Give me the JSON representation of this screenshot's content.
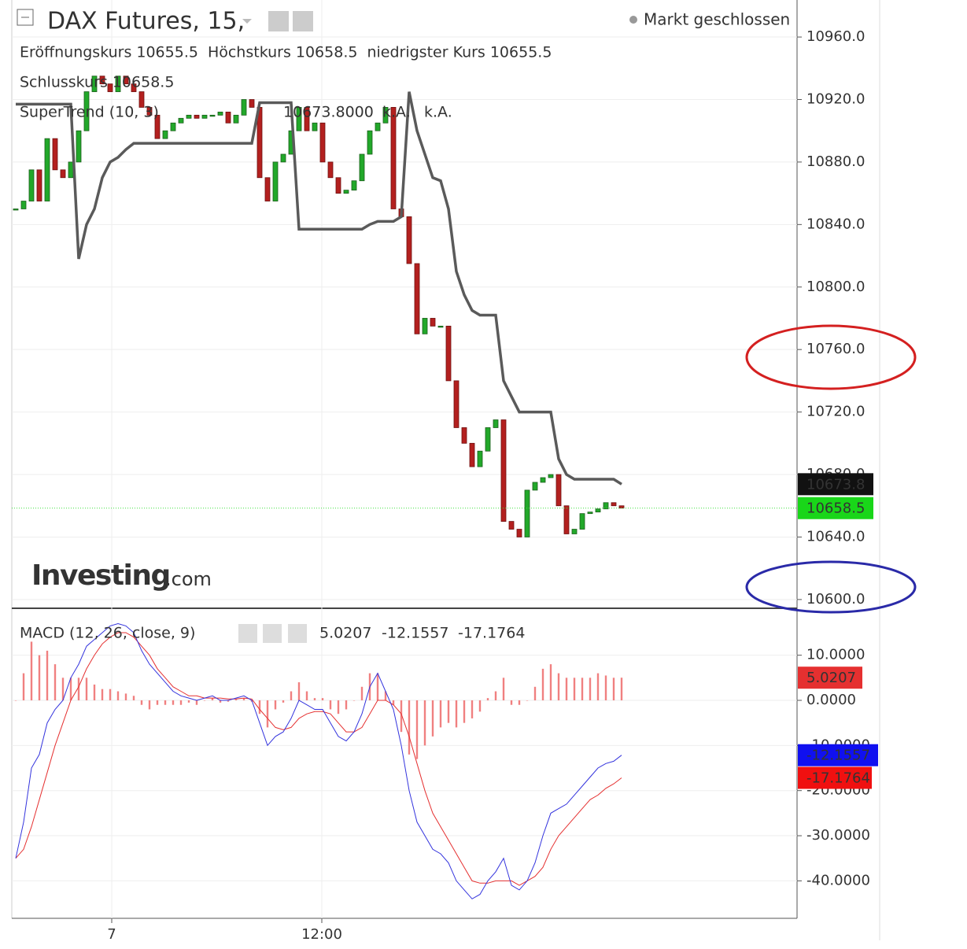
{
  "chart_data": [
    {
      "type": "candlestick",
      "title": "DAX Futures, 15,",
      "status": "Markt geschlossen",
      "ohlc_legend": [
        {
          "label": "Eröffnungskurs",
          "value": 10655.5
        },
        {
          "label": "Höchstkurs",
          "value": 10658.5
        },
        {
          "label": "niedrigster Kurs",
          "value": 10655.5
        },
        {
          "label": "Schlusskurs",
          "value": 10658.5
        }
      ],
      "watermark": [
        "Investing",
        ".com"
      ],
      "color_up": "#22a82a",
      "color_down": "#b3201f",
      "values": [
        10850,
        10855,
        10875,
        10855,
        10895,
        10875,
        10870,
        10880,
        10900,
        10925,
        10935,
        10930,
        10925,
        10935,
        10930,
        10925,
        10915,
        10910,
        10895,
        10900,
        10905,
        10908,
        10910,
        10908,
        10910,
        10910,
        10912,
        10905,
        10910,
        10920,
        10915,
        10870,
        10855,
        10880,
        10885,
        10900,
        10915,
        10900,
        10905,
        10880,
        10870,
        10860,
        10862,
        10868,
        10885,
        10900,
        10905,
        10915,
        10850,
        10845,
        10815,
        10770,
        10780,
        10775,
        10775,
        10740,
        10710,
        10700,
        10685,
        10695,
        10710,
        10715,
        10650,
        10645,
        10640,
        10670,
        10675,
        10678,
        10680,
        10660,
        10642,
        10645,
        10655,
        10656,
        10658,
        10662,
        10660,
        10658.5
      ],
      "supertrend": {
        "name": "SuperTrend (10, 3)",
        "value_label": "10673.8000",
        "notes": [
          "k.A.",
          "k.A."
        ],
        "color": "#5a5a5a",
        "values": [
          10917,
          10917,
          10917,
          10917,
          10917,
          10917,
          10917,
          10917,
          10818,
          10840,
          10850,
          10870,
          10880,
          10883,
          10888,
          10892,
          10892,
          10892,
          10892,
          10892,
          10892,
          10892,
          10892,
          10892,
          10892,
          10892,
          10892,
          10892,
          10892,
          10892,
          10892,
          10918,
          10918,
          10918,
          10918,
          10918,
          10837,
          10837,
          10837,
          10837,
          10837,
          10837,
          10837,
          10837,
          10837,
          10840,
          10842,
          10842,
          10842,
          10845,
          10925,
          10900,
          10885,
          10870,
          10868,
          10850,
          10810,
          10795,
          10785,
          10782,
          10782,
          10782,
          10740,
          10730,
          10720,
          10720,
          10720,
          10720,
          10720,
          10690,
          10680,
          10677,
          10677,
          10677,
          10677,
          10677,
          10677,
          10673.8
        ]
      },
      "xlim": [
        -0.5,
        99.3
      ],
      "xticks": [
        {
          "value": 12.2,
          "label": "7"
        },
        {
          "value": 38.9,
          "label": "12:00"
        }
      ],
      "ylim": [
        10594.4,
        10983.7
      ],
      "yticks": [
        {
          "value": 10600,
          "label": "10600.0"
        },
        {
          "value": 10640,
          "label": "10640.0"
        },
        {
          "value": 10680,
          "label": "10680.0"
        },
        {
          "value": 10720,
          "label": "10720.0"
        },
        {
          "value": 10760,
          "label": "10760.0"
        },
        {
          "value": 10800,
          "label": "10800.0"
        },
        {
          "value": 10840,
          "label": "10840.0"
        },
        {
          "value": 10880,
          "label": "10880.0"
        },
        {
          "value": 10920,
          "label": "10920.0"
        },
        {
          "value": 10960,
          "label": "10960.0"
        }
      ],
      "grid": true
    },
    {
      "type": "macd",
      "title": "MACD (12, 26, close, 9)",
      "histogram": {
        "color": "#f08080",
        "values": [
          0,
          6,
          13,
          10,
          11,
          8,
          5,
          5,
          5,
          5,
          3.5,
          2.5,
          2.5,
          2,
          1.5,
          1,
          -1,
          -2,
          -1,
          -1,
          -1,
          -1,
          -0.5,
          -1,
          0,
          0.5,
          -0.5,
          -0.3,
          0.2,
          0.5,
          -0.3,
          -3,
          -6,
          -2,
          -0.5,
          2,
          4,
          2,
          0.5,
          0.5,
          -2,
          -3,
          -2,
          0,
          3,
          6,
          6,
          2,
          -1,
          -7,
          -12,
          -13,
          -10,
          -8,
          -6,
          -5,
          -6,
          -5,
          -4,
          -2.5,
          0.5,
          2,
          5,
          -1,
          -1,
          0,
          3,
          7,
          8,
          6,
          5,
          5,
          5,
          5,
          6,
          5.5,
          5,
          5.0207
        ]
      },
      "macd": {
        "color": "#3333dd",
        "values": [
          -35,
          -27,
          -15,
          -12,
          -5,
          -2,
          0,
          5,
          8,
          12,
          13.5,
          15,
          16.5,
          17,
          16.5,
          15,
          11,
          8,
          6,
          4,
          2,
          1,
          0.5,
          0,
          0.5,
          1,
          0,
          0,
          0.5,
          1,
          0,
          -5,
          -10,
          -8,
          -7,
          -4,
          0,
          -1,
          -2,
          -2,
          -5,
          -8,
          -9,
          -7,
          -3,
          3,
          6,
          2,
          -2,
          -10,
          -20,
          -27,
          -30,
          -33,
          -34,
          -36,
          -40,
          -42,
          -44,
          -43,
          -40,
          -38,
          -35,
          -41,
          -42,
          -40,
          -36,
          -30,
          -25,
          -24,
          -23,
          -21,
          -19,
          -17,
          -15,
          -14,
          -13.5,
          -12.1557
        ]
      },
      "signal": {
        "color": "#e53030",
        "values": [
          -35,
          -33,
          -28,
          -22,
          -16,
          -10,
          -5,
          0,
          3,
          7,
          10,
          12.5,
          14,
          15,
          15,
          14,
          12,
          10,
          7,
          5,
          3,
          2,
          1,
          1,
          0.5,
          0.5,
          0.5,
          0.3,
          0.3,
          0.5,
          0.3,
          -2,
          -4,
          -6,
          -6.5,
          -6,
          -4,
          -3,
          -2.5,
          -2.5,
          -3,
          -5,
          -7,
          -7,
          -6,
          -3,
          0,
          0,
          -1,
          -3,
          -8,
          -14,
          -20,
          -25,
          -28,
          -31,
          -34,
          -37,
          -40,
          -40.5,
          -40.5,
          -40,
          -40,
          -40,
          -41,
          -40,
          -39,
          -37,
          -33,
          -30,
          -28,
          -26,
          -24,
          -22,
          -21,
          -19.5,
          -18.5,
          -17.1764
        ]
      },
      "ylim": [
        -48.3,
        20.4
      ],
      "yticks": [
        {
          "value": -40,
          "label": "-40.0000"
        },
        {
          "value": -30,
          "label": "-30.0000"
        },
        {
          "value": -20,
          "label": "-20.0000"
        },
        {
          "value": -10,
          "label": "-10.0000"
        },
        {
          "value": 0,
          "label": "0.0000"
        },
        {
          "value": 10,
          "label": "10.0000"
        }
      ],
      "grid": true
    }
  ]
}
